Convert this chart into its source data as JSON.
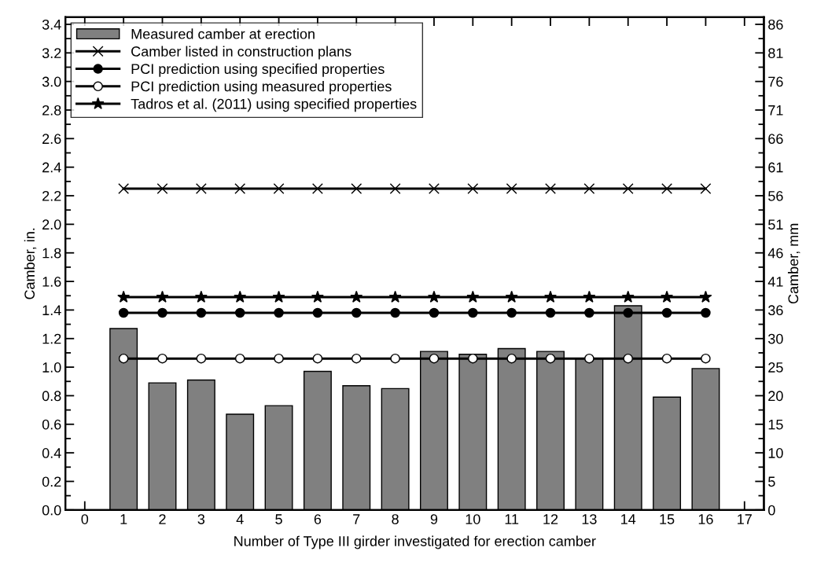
{
  "chart_data": {
    "type": "bar",
    "xlabel": "Number of Type III girder investigated for erection camber",
    "ylabel": "Camber, in.",
    "y2label": "Camber, mm",
    "x": [
      1,
      2,
      3,
      4,
      5,
      6,
      7,
      8,
      9,
      10,
      11,
      12,
      13,
      14,
      15,
      16
    ],
    "series": [
      {
        "name": "Measured camber at erection",
        "color": "#808080",
        "values": [
          1.27,
          0.89,
          0.91,
          0.67,
          0.73,
          0.97,
          0.87,
          0.85,
          1.11,
          1.09,
          1.13,
          1.11,
          1.06,
          1.43,
          0.79,
          0.99
        ]
      },
      {
        "name": "Camber listed in construction plans",
        "type": "line",
        "color": "#000000",
        "marker": "cross",
        "values": [
          2.25,
          2.25,
          2.25,
          2.25,
          2.25,
          2.25,
          2.25,
          2.25,
          2.25,
          2.25,
          2.25,
          2.25,
          2.25,
          2.25,
          2.25,
          2.25
        ]
      },
      {
        "name": "PCI prediction using specified properties",
        "type": "line",
        "color": "#000000",
        "marker": "circle",
        "values": [
          1.38,
          1.38,
          1.38,
          1.38,
          1.38,
          1.38,
          1.38,
          1.38,
          1.38,
          1.38,
          1.38,
          1.38,
          1.38,
          1.38,
          1.38,
          1.38
        ]
      },
      {
        "name": "PCI prediction using measured properties",
        "type": "line",
        "color": "#000000",
        "marker": "circle-open",
        "values": [
          1.06,
          1.06,
          1.06,
          1.06,
          1.06,
          1.06,
          1.06,
          1.06,
          1.06,
          1.06,
          1.06,
          1.06,
          1.06,
          1.06,
          1.06,
          1.06
        ]
      },
      {
        "name": "Tadros et al. (2011) using specified properties",
        "type": "line",
        "color": "#000000",
        "marker": "star",
        "values": [
          1.49,
          1.49,
          1.49,
          1.49,
          1.49,
          1.49,
          1.49,
          1.49,
          1.49,
          1.49,
          1.49,
          1.49,
          1.49,
          1.49,
          1.49,
          1.49
        ]
      }
    ],
    "xlim": [
      -0.5,
      17.5
    ],
    "xticks": [
      0,
      1,
      2,
      3,
      4,
      5,
      6,
      7,
      8,
      9,
      10,
      11,
      12,
      13,
      14,
      15,
      16,
      17
    ],
    "ylim": [
      0,
      3.45
    ],
    "yticks": [
      {
        "value": 0,
        "label": "0.0"
      },
      {
        "value": 0.2,
        "label": "0.2"
      },
      {
        "value": 0.4,
        "label": "0.4"
      },
      {
        "value": 0.6,
        "label": "0.6"
      },
      {
        "value": 0.8,
        "label": "0.8"
      },
      {
        "value": 1.0,
        "label": "1.0"
      },
      {
        "value": 1.2,
        "label": "1.2"
      },
      {
        "value": 1.4,
        "label": "1.4"
      },
      {
        "value": 1.6,
        "label": "1.6"
      },
      {
        "value": 1.8,
        "label": "1.8"
      },
      {
        "value": 2.0,
        "label": "2.0"
      },
      {
        "value": 2.2,
        "label": "2.2"
      },
      {
        "value": 2.4,
        "label": "2.4"
      },
      {
        "value": 2.6,
        "label": "2.6"
      },
      {
        "value": 2.8,
        "label": "2.8"
      },
      {
        "value": 3.0,
        "label": "3.0"
      },
      {
        "value": 3.2,
        "label": "3.2"
      },
      {
        "value": 3.4,
        "label": "3.4"
      }
    ],
    "y2lim": [
      0,
      87.63
    ],
    "y2ticks": [
      {
        "value": 0,
        "label": "0"
      },
      {
        "value": 5.08,
        "label": "5"
      },
      {
        "value": 10.16,
        "label": "10"
      },
      {
        "value": 15.24,
        "label": "15"
      },
      {
        "value": 20.32,
        "label": "20"
      },
      {
        "value": 25.4,
        "label": "25"
      },
      {
        "value": 30.48,
        "label": "30"
      },
      {
        "value": 35.56,
        "label": "36"
      },
      {
        "value": 40.64,
        "label": "41"
      },
      {
        "value": 45.72,
        "label": "46"
      },
      {
        "value": 50.8,
        "label": "51"
      },
      {
        "value": 55.88,
        "label": "56"
      },
      {
        "value": 60.96,
        "label": "61"
      },
      {
        "value": 66.04,
        "label": "66"
      },
      {
        "value": 71.12,
        "label": "71"
      },
      {
        "value": 76.2,
        "label": "76"
      },
      {
        "value": 81.28,
        "label": "81"
      },
      {
        "value": 86.36,
        "label": "86"
      }
    ],
    "legend": "top left",
    "grid": false
  }
}
